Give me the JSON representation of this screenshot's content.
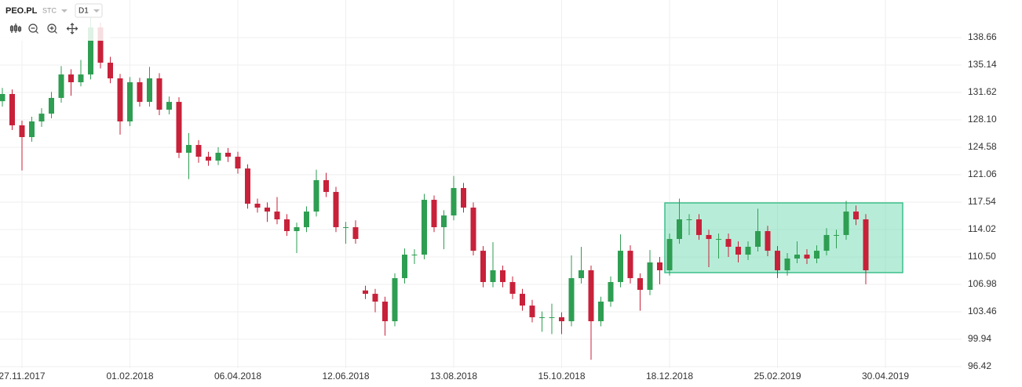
{
  "chart_data": {
    "type": "candlestick",
    "symbol": "PEO.PL",
    "market": "STC",
    "interval": "D1",
    "categories": [
      null,
      null,
      "27.11.2017",
      null,
      null,
      null,
      null,
      null,
      null,
      null,
      null,
      null,
      null,
      "01.02.2018",
      null,
      null,
      null,
      null,
      null,
      null,
      null,
      null,
      null,
      null,
      "06.04.2018",
      null,
      null,
      null,
      null,
      null,
      null,
      null,
      null,
      null,
      null,
      "12.06.2018",
      null,
      null,
      null,
      null,
      null,
      null,
      null,
      null,
      null,
      null,
      "13.08.2018",
      null,
      null,
      null,
      null,
      null,
      null,
      null,
      null,
      null,
      null,
      "15.10.2018",
      null,
      null,
      null,
      null,
      null,
      null,
      null,
      null,
      null,
      null,
      "18.12.2018",
      null,
      null,
      null,
      null,
      null,
      null,
      null,
      null,
      null,
      null,
      "25.02.2019",
      null,
      null,
      null,
      null,
      null,
      null,
      null,
      null,
      null,
      null,
      "30.04.2019"
    ],
    "open": [
      130.5,
      131.42,
      127.4,
      125.89,
      127.9,
      128.9,
      130.92,
      133.93,
      132.93,
      133.93,
      139.97,
      135.44,
      133.43,
      127.9,
      132.93,
      130.41,
      133.43,
      129.41,
      130.41,
      123.88,
      124.88,
      123.37,
      122.87,
      123.88,
      123.37,
      121.86,
      117.34,
      116.84,
      116.33,
      115.33,
      113.82,
      114.32,
      116.33,
      120.36,
      118.85,
      114.32,
      114.32,
      106.2,
      105.77,
      104.77,
      102.25,
      107.78,
      110.8,
      110.8,
      117.84,
      114.32,
      115.83,
      119.35,
      116.84,
      111.3,
      107.28,
      108.79,
      107.28,
      105.77,
      104.26,
      102.76,
      102.76,
      102.76,
      102.25,
      107.78,
      108.79,
      102.25,
      104.77,
      107.28,
      111.3,
      107.78,
      106.28,
      109.8,
      108.79,
      112.81,
      115.33,
      115.33,
      113.32,
      112.81,
      112.81,
      111.81,
      110.8,
      111.81,
      113.82,
      111.3,
      108.79,
      110.3,
      110.8,
      110.3,
      111.3,
      113.32,
      113.32,
      116.33,
      115.33,
      null,
      null
    ],
    "high": [
      132.2,
      132.0,
      128.0,
      128.5,
      129.6,
      131.7,
      135.0,
      134.6,
      135.8,
      141.2,
      140.6,
      136.2,
      134.0,
      133.6,
      133.5,
      134.9,
      134.1,
      131.1,
      131.0,
      126.4,
      125.5,
      124.0,
      124.6,
      124.5,
      124.0,
      122.4,
      118.0,
      117.5,
      118.2,
      116.0,
      114.9,
      117.0,
      121.7,
      121.3,
      119.5,
      115.0,
      115.2,
      106.8,
      106.4,
      105.4,
      108.4,
      111.6,
      111.5,
      118.6,
      118.4,
      116.5,
      120.9,
      120.0,
      117.5,
      111.9,
      112.4,
      109.4,
      108.0,
      106.4,
      105.0,
      103.5,
      104.5,
      103.4,
      110.7,
      111.8,
      109.4,
      105.4,
      108.0,
      113.4,
      112.0,
      108.4,
      111.4,
      110.5,
      113.5,
      118.0,
      116.0,
      116.0,
      114.0,
      113.5,
      113.5,
      112.5,
      112.5,
      116.7,
      114.5,
      111.9,
      111.0,
      112.5,
      111.5,
      112.0,
      114.2,
      114.0,
      117.7,
      117.1,
      116.0,
      null,
      null
    ],
    "low": [
      129.8,
      126.8,
      121.6,
      125.3,
      127.2,
      128.3,
      130.3,
      131.2,
      132.4,
      133.3,
      134.7,
      132.8,
      126.2,
      127.3,
      129.8,
      129.8,
      128.7,
      128.8,
      123.2,
      120.5,
      122.6,
      122.2,
      122.3,
      122.7,
      121.2,
      116.7,
      116.2,
      115.0,
      114.7,
      113.2,
      111.0,
      113.7,
      115.7,
      118.2,
      113.7,
      112.2,
      112.2,
      105.1,
      103.4,
      100.4,
      101.6,
      107.1,
      109.6,
      110.2,
      113.7,
      111.5,
      115.2,
      116.2,
      110.7,
      106.6,
      106.6,
      106.6,
      105.1,
      103.6,
      102.1,
      100.9,
      100.6,
      100.6,
      101.6,
      107.1,
      97.3,
      101.6,
      104.1,
      106.6,
      107.1,
      103.6,
      105.6,
      107.0,
      108.1,
      112.2,
      113.3,
      112.7,
      109.2,
      110.3,
      110.5,
      109.8,
      110.1,
      111.2,
      110.6,
      107.8,
      108.1,
      109.7,
      109.6,
      109.7,
      110.7,
      111.6,
      112.7,
      114.6,
      107.0,
      null,
      null
    ],
    "close": [
      131.42,
      127.4,
      125.89,
      127.9,
      128.9,
      130.92,
      133.93,
      132.93,
      133.93,
      139.97,
      135.44,
      133.43,
      127.9,
      132.93,
      130.41,
      133.43,
      129.41,
      130.41,
      123.88,
      124.88,
      123.37,
      122.87,
      123.88,
      123.37,
      121.86,
      117.34,
      116.84,
      116.33,
      115.33,
      113.82,
      114.32,
      116.33,
      120.36,
      118.85,
      114.32,
      114.32,
      112.81,
      105.77,
      104.77,
      102.25,
      107.78,
      110.8,
      110.8,
      117.84,
      114.32,
      115.83,
      119.35,
      116.84,
      111.3,
      107.28,
      108.79,
      107.28,
      105.77,
      104.26,
      102.76,
      102.76,
      102.76,
      102.25,
      107.78,
      108.79,
      102.25,
      104.77,
      107.28,
      111.3,
      107.78,
      106.28,
      109.8,
      108.79,
      112.81,
      115.33,
      115.33,
      113.32,
      112.81,
      112.81,
      111.81,
      110.8,
      111.81,
      113.82,
      111.3,
      108.79,
      110.3,
      110.8,
      110.3,
      111.3,
      113.32,
      113.32,
      116.33,
      115.33,
      108.79,
      null,
      null
    ],
    "up_color": "#2e9e52",
    "down_color": "#c8213a",
    "ylim": [
      96.22,
      143.49
    ],
    "yticks": [
      96.42,
      99.94,
      103.46,
      106.98,
      {
        "value": 110.5,
        "label": "110.50"
      },
      114.02,
      117.54,
      121.06,
      124.58,
      {
        "value": 128.1,
        "label": "128.10"
      },
      131.62,
      135.14,
      138.66
    ],
    "grid": true
  }
}
